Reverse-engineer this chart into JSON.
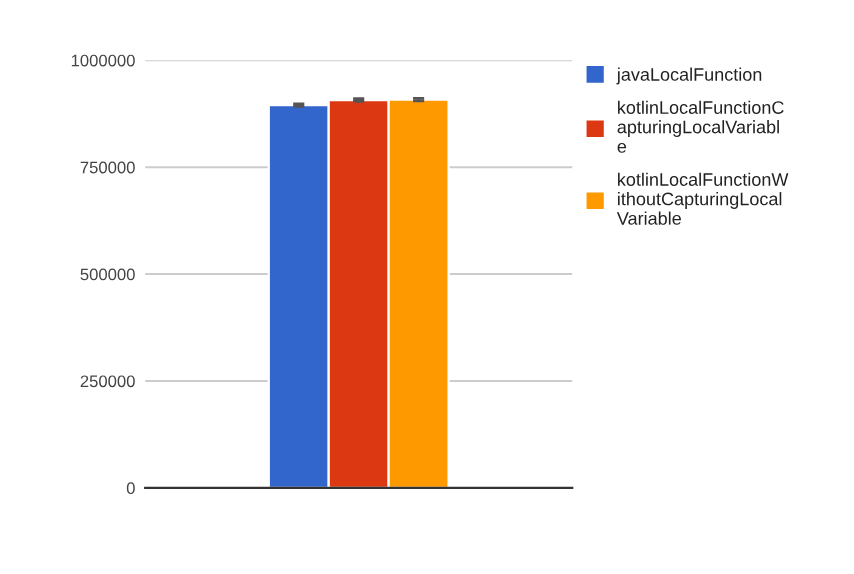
{
  "chart_data": {
    "type": "bar",
    "categories": [
      null
    ],
    "series": [
      {
        "name": "javaLocalFunction",
        "color": "#3366cc",
        "values": [
          895000
        ],
        "errors": [
          3000
        ]
      },
      {
        "name": "kotlinLocalFunctionCapturingLocalVariable",
        "color": "#dc3912",
        "values": [
          907000
        ],
        "errors": [
          3000
        ]
      },
      {
        "name": "kotlinLocalFunctionWithoutCapturingLocalVariable",
        "color": "#ff9900",
        "values": [
          908000
        ],
        "errors": [
          3000
        ]
      }
    ],
    "ylim": [
      0,
      1000000
    ],
    "yticks": [
      0,
      250000,
      500000,
      750000,
      1000000
    ],
    "grid": "y",
    "legend": "right"
  }
}
